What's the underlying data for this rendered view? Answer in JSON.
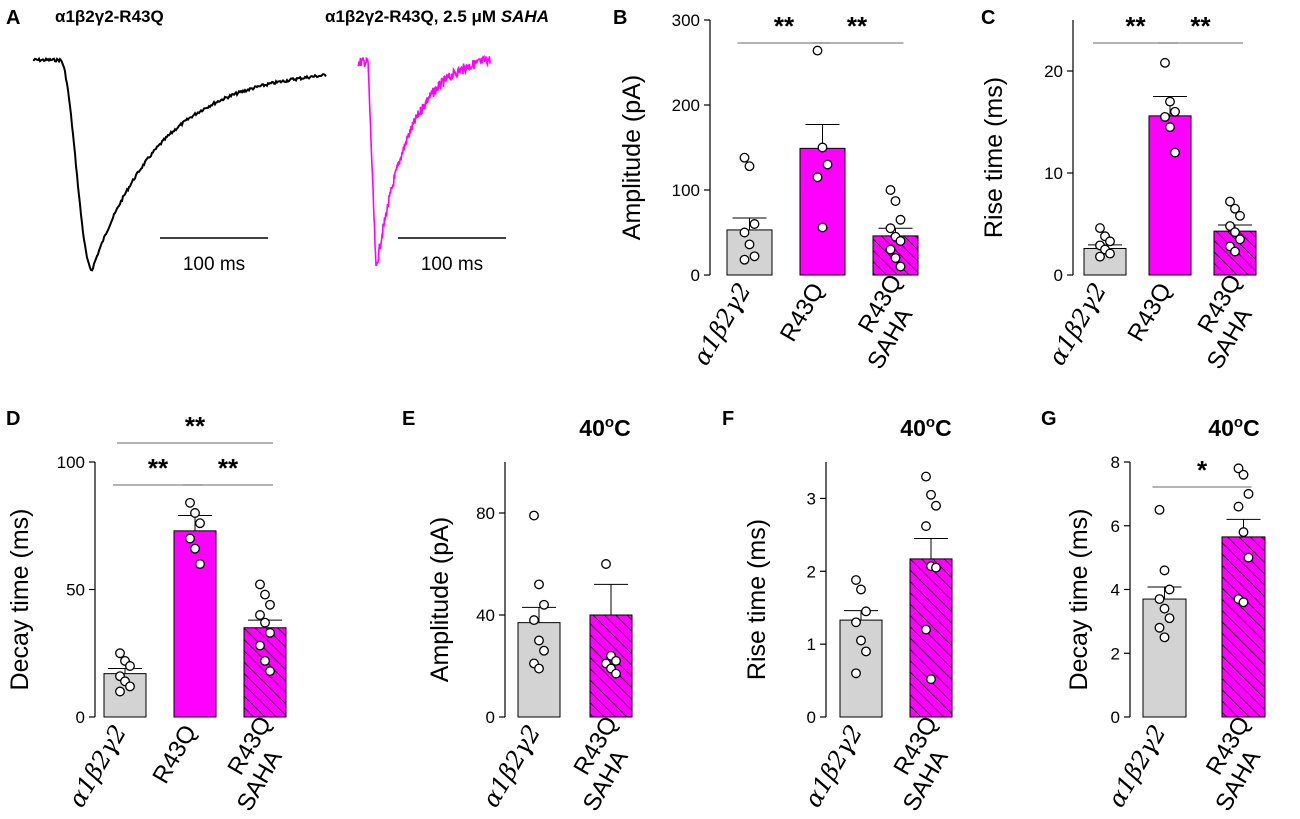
{
  "colors": {
    "control": "#d3d3d3",
    "mutant": "#ff00ff",
    "trace_control": "#000000",
    "trace_saha": "#ff00ff"
  },
  "panel_a": {
    "label": "A",
    "title_left": "α1β2γ2-R43Q",
    "title_right_prefix": "α1β2γ2-R43Q, 2.5 μM ",
    "title_right_drug": "SAHA",
    "scale_left": "100 ms",
    "scale_right": "100 ms"
  },
  "chart_data": [
    {
      "panel": "B",
      "type": "bar",
      "ylabel": "Amplitude (pA)",
      "ylim": [
        0,
        300
      ],
      "yticks": [
        0,
        100,
        200,
        300
      ],
      "temp": "",
      "categories": [
        {
          "id": "ctrl",
          "line1": "α1β2γ2",
          "line2": ""
        },
        {
          "id": "r43q",
          "line1": "R43Q",
          "line2": ""
        },
        {
          "id": "saha",
          "line1": "R43Q",
          "line2": "SAHA"
        }
      ],
      "values": [
        53,
        149,
        46
      ],
      "sem": [
        14,
        28,
        9
      ],
      "points": [
        [
          138,
          128,
          60,
          50,
          36,
          22,
          18
        ],
        [
          264,
          150,
          130,
          115,
          56
        ],
        [
          100,
          87,
          65,
          55,
          45,
          40,
          30,
          20,
          10
        ]
      ],
      "significance": [
        {
          "from": 0,
          "to": 1,
          "label": "**",
          "level": 0
        },
        {
          "from": 1,
          "to": 2,
          "label": "**",
          "level": 0
        }
      ]
    },
    {
      "panel": "C",
      "type": "bar",
      "ylabel": "Rise time (ms)",
      "ylim": [
        0,
        25
      ],
      "yticks": [
        0,
        10,
        20
      ],
      "temp": "",
      "categories": [
        {
          "id": "ctrl",
          "line1": "α1β2γ2",
          "line2": ""
        },
        {
          "id": "r43q",
          "line1": "R43Q",
          "line2": ""
        },
        {
          "id": "saha",
          "line1": "R43Q",
          "line2": "SAHA"
        }
      ],
      "values": [
        2.6,
        15.6,
        4.3
      ],
      "sem": [
        0.35,
        1.9,
        0.6
      ],
      "points": [
        [
          4.6,
          3.8,
          3.3,
          2.9,
          2.5,
          2.1,
          1.8
        ],
        [
          20.8,
          17.0,
          16.0,
          15.5,
          14.5,
          12.0
        ],
        [
          7.2,
          6.5,
          5.8,
          4.8,
          4.2,
          3.5,
          2.8,
          2.3
        ]
      ],
      "significance": [
        {
          "from": 0,
          "to": 1,
          "label": "**",
          "level": 0
        },
        {
          "from": 1,
          "to": 2,
          "label": "**",
          "level": 0
        }
      ]
    },
    {
      "panel": "D",
      "type": "bar",
      "ylabel": "Decay time (ms)",
      "ylim": [
        0,
        100
      ],
      "yticks": [
        0,
        50,
        100
      ],
      "temp": "",
      "categories": [
        {
          "id": "ctrl",
          "line1": "α1β2γ2",
          "line2": ""
        },
        {
          "id": "r43q",
          "line1": "R43Q",
          "line2": ""
        },
        {
          "id": "saha",
          "line1": "R43Q",
          "line2": "SAHA"
        }
      ],
      "values": [
        17,
        73,
        35
      ],
      "sem": [
        2,
        6,
        3
      ],
      "points": [
        [
          25,
          22,
          20,
          16,
          14,
          12,
          10
        ],
        [
          84,
          80,
          76,
          70,
          66,
          60
        ],
        [
          52,
          48,
          44,
          40,
          37,
          33,
          28,
          22,
          18
        ]
      ],
      "significance": [
        {
          "from": 0,
          "to": 1,
          "label": "**",
          "level": 0
        },
        {
          "from": 1,
          "to": 2,
          "label": "**",
          "level": 0
        },
        {
          "from": 0,
          "to": 2,
          "label": "**",
          "level": 1
        }
      ]
    },
    {
      "panel": "E",
      "type": "bar",
      "ylabel": "Amplitude (pA)",
      "ylim": [
        0,
        100
      ],
      "yticks": [
        0,
        40,
        80
      ],
      "temp": "40",
      "categories": [
        {
          "id": "ctrl",
          "line1": "α1β2γ2",
          "line2": ""
        },
        {
          "id": "saha",
          "line1": "R43Q",
          "line2": "SAHA"
        }
      ],
      "values": [
        37,
        40
      ],
      "sem": [
        6,
        12
      ],
      "points": [
        [
          79,
          52,
          44,
          38,
          30,
          26,
          21,
          19
        ],
        [
          60,
          24,
          22,
          21,
          19,
          17
        ]
      ],
      "significance": []
    },
    {
      "panel": "F",
      "type": "bar",
      "ylabel": "Rise time (ms)",
      "ylim": [
        0,
        3.5
      ],
      "yticks": [
        0,
        1,
        2,
        3
      ],
      "temp": "40",
      "categories": [
        {
          "id": "ctrl",
          "line1": "α1β2γ2",
          "line2": ""
        },
        {
          "id": "saha",
          "line1": "R43Q",
          "line2": "SAHA"
        }
      ],
      "values": [
        1.33,
        2.17
      ],
      "sem": [
        0.13,
        0.28
      ],
      "points": [
        [
          1.88,
          1.75,
          1.45,
          1.3,
          1.05,
          0.9,
          0.6
        ],
        [
          3.3,
          3.05,
          2.9,
          2.62,
          2.07,
          2.05,
          1.2,
          0.52
        ]
      ],
      "significance": []
    },
    {
      "panel": "G",
      "type": "bar",
      "ylabel": "Decay time (ms)",
      "ylim": [
        0,
        8
      ],
      "yticks": [
        0,
        2,
        4,
        6,
        8
      ],
      "temp": "40",
      "categories": [
        {
          "id": "ctrl",
          "line1": "α1β2γ2",
          "line2": ""
        },
        {
          "id": "saha",
          "line1": "R43Q",
          "line2": "SAHA"
        }
      ],
      "values": [
        3.7,
        5.65
      ],
      "sem": [
        0.38,
        0.55
      ],
      "points": [
        [
          6.5,
          4.6,
          4.0,
          3.7,
          3.4,
          3.1,
          2.8,
          2.5
        ],
        [
          7.8,
          7.6,
          7.0,
          6.6,
          5.8,
          5.0,
          3.7,
          3.6
        ]
      ],
      "significance": [
        {
          "from": 0,
          "to": 1,
          "label": "*",
          "level": 0
        }
      ]
    }
  ]
}
